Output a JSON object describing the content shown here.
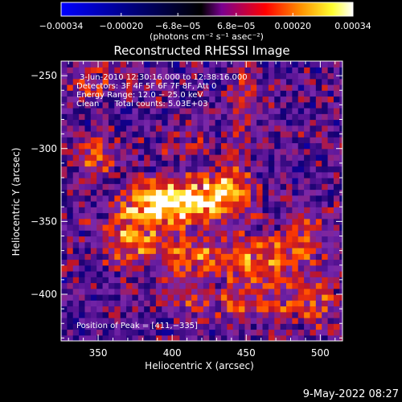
{
  "chart_data": {
    "type": "heatmap",
    "title": "Reconstructed RHESSI Image",
    "xlabel": "Heliocentric X (arcsec)",
    "ylabel": "Heliocentric Y (arcsec)",
    "xlim": [
      325,
      515
    ],
    "ylim": [
      -432,
      -240
    ],
    "x_ticks": [
      350,
      400,
      450,
      500
    ],
    "x_tick_labels": [
      "350",
      "400",
      "450",
      "500"
    ],
    "y_ticks": [
      -250,
      -300,
      -350,
      -400
    ],
    "y_tick_labels": [
      "−250",
      "−300",
      "−350",
      "−400"
    ],
    "grid": false,
    "colorbar": {
      "range": [
        -0.00034,
        0.00034
      ],
      "tick_values": [
        -0.00034,
        -0.0002,
        -6.8e-05,
        6.8e-05,
        0.0002,
        0.00034
      ],
      "tick_labels": [
        "−0.00034",
        "−0.00020",
        "−6.8e−05",
        "6.8e−05",
        "0.00020",
        "0.00034"
      ],
      "units_label": "(photons cm⁻² s⁻¹ asec⁻²)",
      "colors": [
        "#0000ff",
        "#000000",
        "#7a0090",
        "#ff0000",
        "#ff9000",
        "#ffff30",
        "#ffffff"
      ]
    },
    "annotations": [
      "3‑Jun‑2010 12:30:16.000 to 12:38:16.000",
      "Detectors: 3F 4F 5F 6F 7F 8F, Att 0",
      "Energy Range: 12.0 − 25.0 keV",
      "Clean      Total counts: 5.03E+03"
    ],
    "peak_label": "Position of Peak = [411,−335]",
    "peak_position": [
      411,
      -335
    ],
    "sources": [
      {
        "x": 411,
        "y": -335,
        "amp": 1.0,
        "sx": 22,
        "sy": 9
      },
      {
        "x": 385,
        "y": -345,
        "amp": 0.55,
        "sx": 14,
        "sy": 14
      },
      {
        "x": 440,
        "y": -322,
        "amp": 0.45,
        "sx": 10,
        "sy": 14
      },
      {
        "x": 350,
        "y": -305,
        "amp": 0.45,
        "sx": 10,
        "sy": 9
      },
      {
        "x": 365,
        "y": -362,
        "amp": 0.4,
        "sx": 12,
        "sy": 12
      },
      {
        "x": 418,
        "y": -372,
        "amp": 0.45,
        "sx": 28,
        "sy": 10
      },
      {
        "x": 462,
        "y": -378,
        "amp": 0.45,
        "sx": 18,
        "sy": 10
      },
      {
        "x": 490,
        "y": -360,
        "amp": 0.4,
        "sx": 12,
        "sy": 12
      },
      {
        "x": 470,
        "y": -405,
        "amp": 0.35,
        "sx": 22,
        "sy": 10
      },
      {
        "x": 420,
        "y": -405,
        "amp": 0.3,
        "sx": 20,
        "sy": 8
      },
      {
        "x": 450,
        "y": -262,
        "amp": 0.3,
        "sx": 8,
        "sy": 18
      },
      {
        "x": 405,
        "y": -295,
        "amp": 0.3,
        "sx": 10,
        "sy": 8
      },
      {
        "x": 500,
        "y": -405,
        "amp": 0.3,
        "sx": 10,
        "sy": 12
      },
      {
        "x": 345,
        "y": -255,
        "amp": 0.25,
        "sx": 14,
        "sy": 10
      }
    ]
  },
  "footer": {
    "date": "9‑May‑2022 08:27"
  }
}
